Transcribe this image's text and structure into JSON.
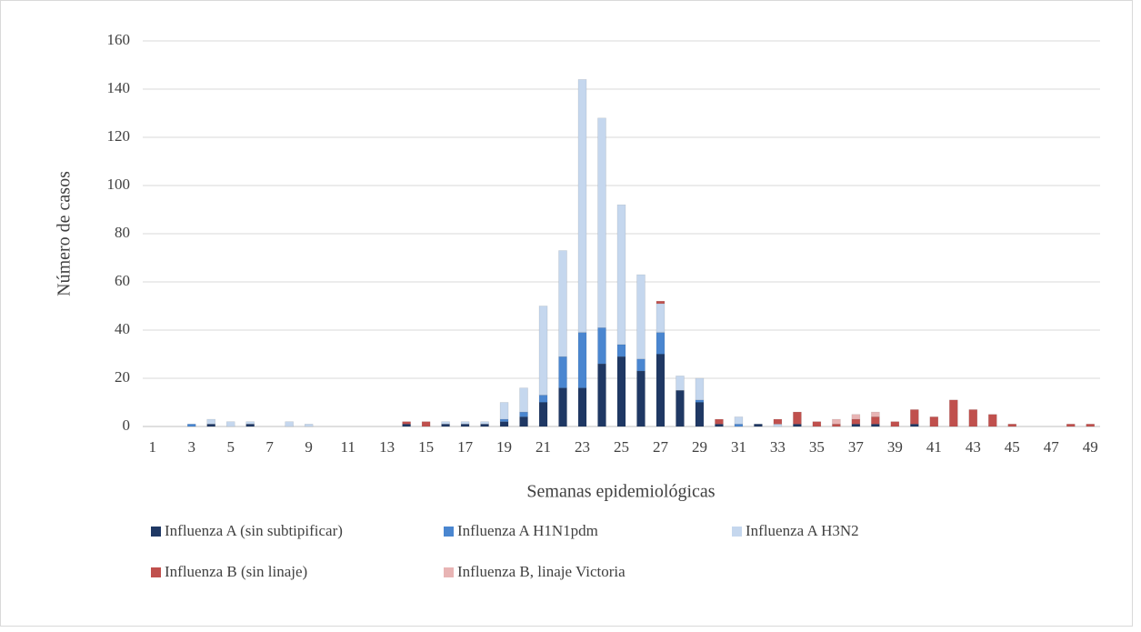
{
  "chart_data": {
    "type": "bar",
    "stacked": true,
    "xlabel": "Semanas epidemiológicas",
    "ylabel": "Número de casos",
    "categories": [
      "1",
      null,
      "3",
      null,
      "5",
      null,
      "7",
      null,
      "9",
      null,
      "11",
      null,
      "13",
      null,
      "15",
      null,
      "17",
      null,
      "19",
      null,
      "21",
      null,
      "23",
      null,
      "25",
      null,
      "27",
      null,
      "29",
      null,
      "31",
      null,
      "33",
      null,
      "35",
      null,
      "37",
      null,
      "39",
      null,
      "41",
      null,
      "43",
      null,
      "45",
      null,
      "47",
      null,
      "49"
    ],
    "series": [
      {
        "name": "Influenza A (sin subtipificar)",
        "color": "#1f3864",
        "values": [
          0,
          0,
          0,
          1,
          0,
          1,
          0,
          0,
          0,
          0,
          0,
          0,
          0,
          1,
          0,
          1,
          1,
          1,
          2,
          4,
          10,
          16,
          16,
          26,
          29,
          23,
          30,
          15,
          10,
          1,
          0,
          1,
          0,
          1,
          0,
          0,
          1,
          1,
          0,
          1,
          0,
          0,
          0,
          0,
          0,
          0,
          0,
          0,
          0
        ]
      },
      {
        "name": "Influenza A H1N1pdm",
        "color": "#4a86d0",
        "values": [
          0,
          0,
          1,
          0,
          0,
          0,
          0,
          0,
          0,
          0,
          0,
          0,
          0,
          0,
          0,
          0,
          0,
          0,
          1,
          2,
          3,
          13,
          23,
          15,
          5,
          5,
          9,
          0,
          1,
          0,
          1,
          0,
          0,
          0,
          0,
          0,
          0,
          0,
          0,
          0,
          0,
          0,
          0,
          0,
          0,
          0,
          0,
          0,
          0
        ]
      },
      {
        "name": "Influenza A H3N2",
        "color": "#c5d7ee",
        "values": [
          0,
          0,
          0,
          2,
          2,
          1,
          0,
          2,
          1,
          0,
          0,
          0,
          0,
          0,
          0,
          1,
          1,
          1,
          7,
          10,
          37,
          44,
          105,
          87,
          58,
          35,
          12,
          6,
          9,
          0,
          3,
          0,
          1,
          0,
          0,
          0,
          0,
          0,
          0,
          0,
          0,
          0,
          0,
          0,
          0,
          0,
          0,
          0,
          0
        ]
      },
      {
        "name": "Influenza B (sin linaje)",
        "color": "#c0504d",
        "values": [
          0,
          0,
          0,
          0,
          0,
          0,
          0,
          0,
          0,
          0,
          0,
          0,
          0,
          1,
          2,
          0,
          0,
          0,
          0,
          0,
          0,
          0,
          0,
          0,
          0,
          0,
          1,
          0,
          0,
          2,
          0,
          0,
          2,
          5,
          2,
          1,
          2,
          3,
          2,
          6,
          4,
          11,
          7,
          5,
          1,
          0,
          0,
          1,
          1
        ]
      },
      {
        "name": "Influenza B, linaje Victoria",
        "color": "#e8b4b4",
        "values": [
          0,
          0,
          0,
          0,
          0,
          0,
          0,
          0,
          0,
          0,
          0,
          0,
          0,
          0,
          0,
          0,
          0,
          0,
          0,
          0,
          0,
          0,
          0,
          0,
          0,
          0,
          0,
          0,
          0,
          0,
          0,
          0,
          0,
          0,
          0,
          2,
          2,
          2,
          0,
          0,
          0,
          0,
          0,
          0,
          0,
          0,
          0,
          0,
          0
        ]
      }
    ],
    "ylim": [
      0,
      160
    ],
    "yticks": [
      0,
      20,
      40,
      60,
      80,
      100,
      120,
      140,
      160
    ],
    "grid": true,
    "legend": "bottom"
  }
}
